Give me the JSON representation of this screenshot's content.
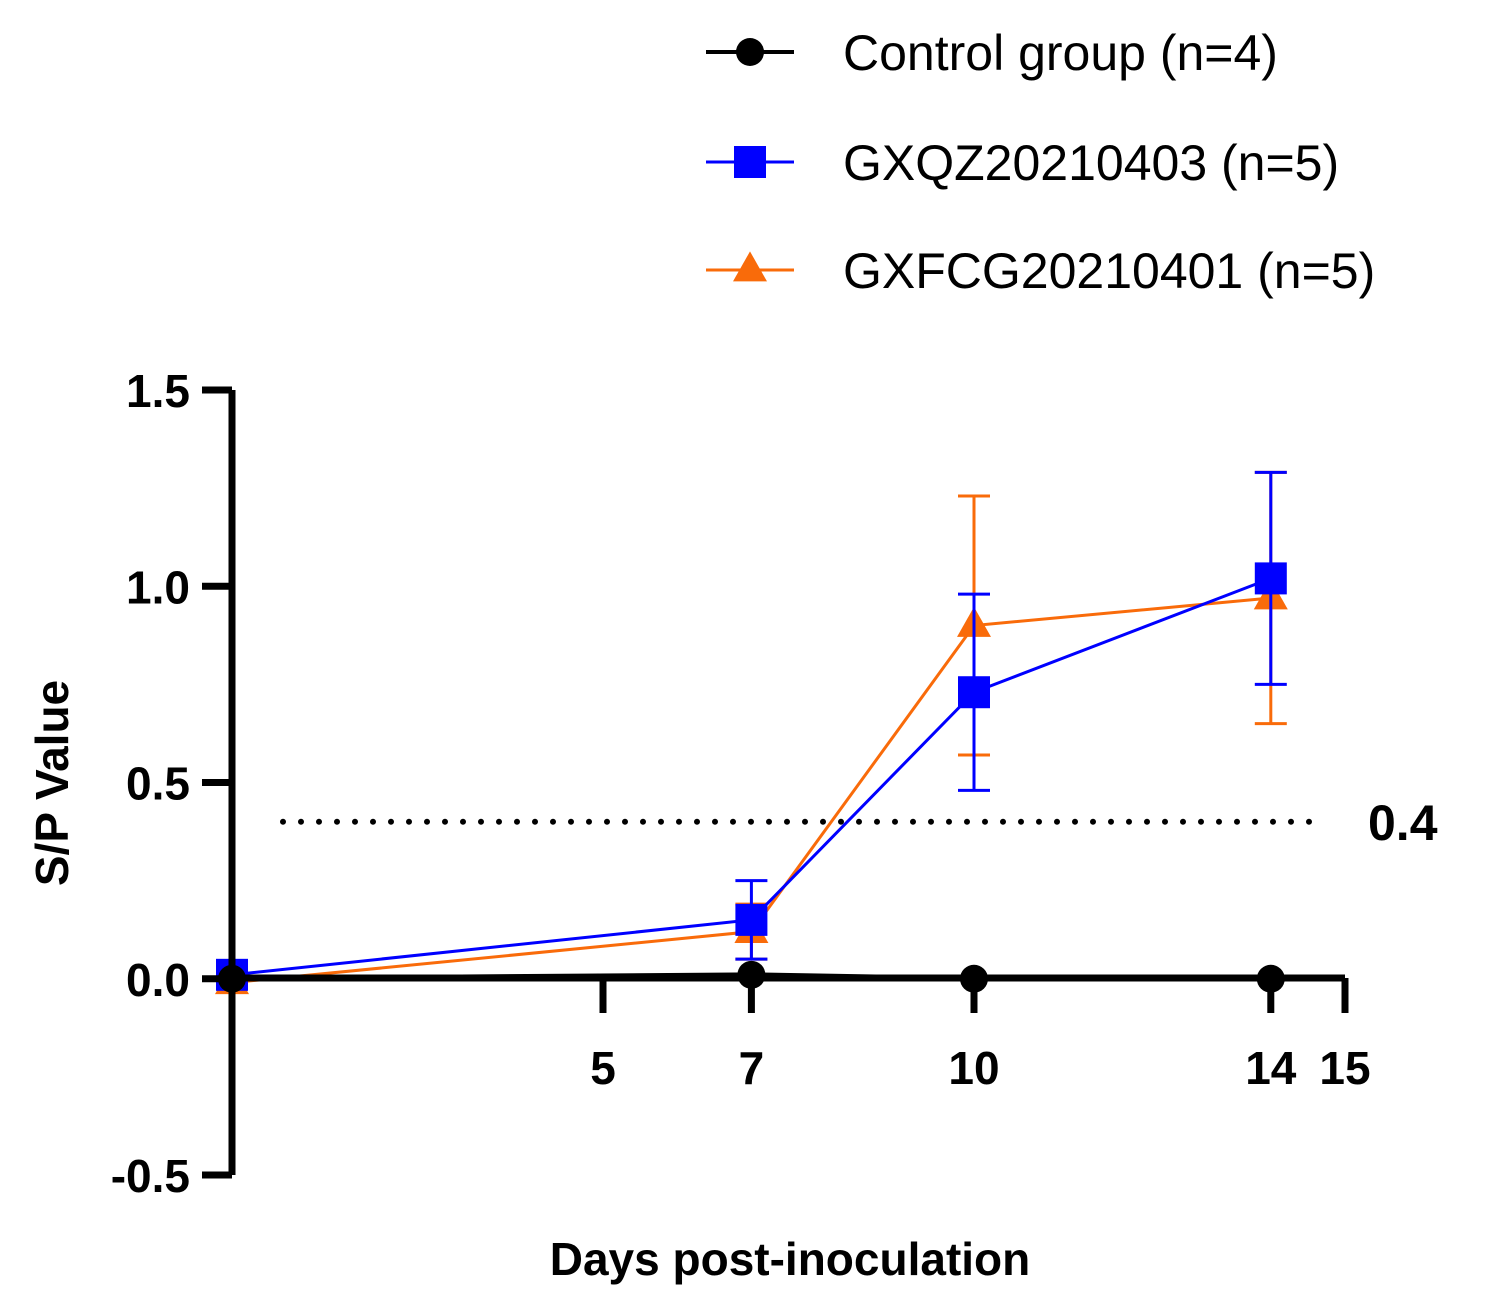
{
  "chart_data": {
    "type": "line",
    "xlabel": "Days post-inoculation",
    "ylabel": "S/P Value",
    "xlim": [
      0,
      15
    ],
    "ylim": [
      -0.5,
      1.5
    ],
    "x_ticks": [
      5,
      7,
      10,
      14,
      15
    ],
    "x_tick_labels": [
      "5",
      "7",
      "10",
      "14",
      "15"
    ],
    "y_ticks": [
      -0.5,
      0.0,
      0.5,
      1.0,
      1.5
    ],
    "y_tick_labels": [
      "-0.5",
      "0.0",
      "0.5",
      "1.0",
      "1.5"
    ],
    "grid": false,
    "legend_position": "top-right",
    "threshold": {
      "value": 0.4,
      "label": "0.4",
      "style": "dotted"
    },
    "series": [
      {
        "name": "Control group (n=4)",
        "color": "#000000",
        "marker": "circle",
        "x": [
          0,
          7,
          10,
          14
        ],
        "y": [
          0.0,
          0.01,
          0.0,
          0.0
        ],
        "err": [
          0.0,
          0.0,
          0.0,
          0.0
        ]
      },
      {
        "name": "GXQZ20210403 (n=5)",
        "color": "#0000ff",
        "marker": "square",
        "x": [
          0,
          7,
          10,
          14
        ],
        "y": [
          0.01,
          0.15,
          0.73,
          1.02
        ],
        "err": [
          0.0,
          0.1,
          0.25,
          0.27
        ]
      },
      {
        "name": "GXFCG20210401 (n=5)",
        "color": "#f96b0a",
        "marker": "triangle",
        "x": [
          0,
          7,
          10,
          14
        ],
        "y": [
          -0.01,
          0.12,
          0.9,
          0.97
        ],
        "err": [
          0.0,
          0.07,
          0.33,
          0.32
        ]
      }
    ]
  }
}
